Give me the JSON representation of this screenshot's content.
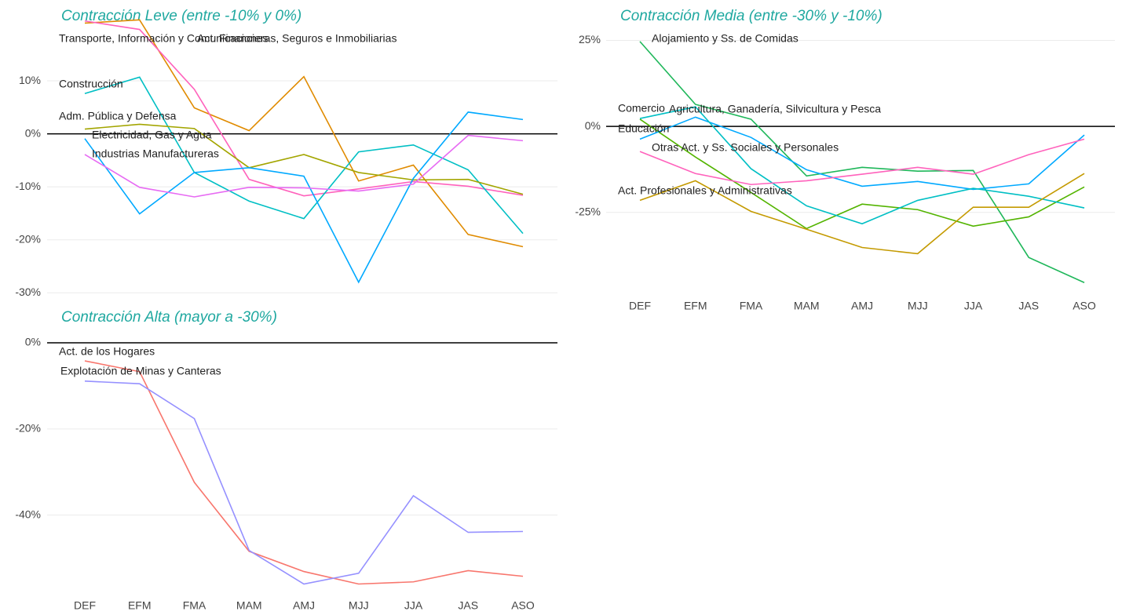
{
  "chart_data": [
    {
      "type": "line",
      "title": "Contracción Leve (entre -10% y 0%)",
      "categories": [
        "DEF",
        "EFM",
        "FMA",
        "MAM",
        "AMJ",
        "MJJ",
        "JJA",
        "JAS",
        "ASO"
      ],
      "show_xticks": false,
      "ylim": [
        -31,
        22
      ],
      "yticks": [
        {
          "value": -30,
          "label": "-30%"
        },
        {
          "value": -20,
          "label": "-20%"
        },
        {
          "value": -10,
          "label": "-10%"
        },
        {
          "value": 0,
          "label": "0%"
        },
        {
          "value": 10,
          "label": "10%"
        }
      ],
      "grid": true,
      "reference_line": 0,
      "series": [
        {
          "name": "Transporte, Información y Comunicaciones",
          "color": "#E08B00",
          "values": [
            20.9,
            21.5,
            4.9,
            0.6,
            10.8,
            -8.9,
            -5.9,
            -19,
            -21.3
          ]
        },
        {
          "name": "Act. Financieras, Seguros e Inmobiliarias",
          "color": "#FF62BC",
          "values": [
            21.3,
            19.7,
            8.4,
            -8.6,
            -11.7,
            -10.4,
            -9,
            -9.9,
            -11.6
          ]
        },
        {
          "name": "Construcción",
          "color": "#00BFC4",
          "values": [
            7.6,
            10.7,
            -7.3,
            -12.7,
            -16,
            -3.4,
            -2.1,
            -6.8,
            -18.8
          ]
        },
        {
          "name": "Adm. Pública y Defensa",
          "color": "#A3A500",
          "values": [
            0.9,
            1.8,
            1,
            -6.4,
            -3.9,
            -7.3,
            -8.7,
            -8.6,
            -11.4
          ]
        },
        {
          "name": "Electricidad, Gas y Agua",
          "color": "#00A9FF",
          "values": [
            -0.9,
            -15.1,
            -7.3,
            -6.4,
            -8,
            -28,
            -8.4,
            4.1,
            2.7
          ]
        },
        {
          "name": "Industrias Manufactureras",
          "color": "#E76BF3",
          "values": [
            -3.9,
            -10.1,
            -11.9,
            -10.1,
            -10.2,
            -10.8,
            -9.5,
            -0.3,
            -1.3
          ]
        }
      ]
    },
    {
      "type": "line",
      "title": "Contracción Media (entre -30% y -10%)",
      "categories": [
        "DEF",
        "EFM",
        "FMA",
        "MAM",
        "AMJ",
        "MJJ",
        "JJA",
        "JAS",
        "ASO"
      ],
      "show_xticks": true,
      "ylim": [
        -49,
        29
      ],
      "yticks": [
        {
          "value": -25,
          "label": "-25%"
        },
        {
          "value": 0,
          "label": "0%"
        },
        {
          "value": 25,
          "label": "25%"
        }
      ],
      "grid": true,
      "reference_line": 0,
      "series": [
        {
          "name": "Alojamiento y Ss. de Comidas",
          "color": "#1FB75A",
          "values": [
            24.7,
            6.4,
            2.1,
            -14.4,
            -11.9,
            -13,
            -12.8,
            -38.1,
            -45.4
          ]
        },
        {
          "name": "Agricultura, Ganadería, Silvicultura y Pesca",
          "color": "#53B400",
          "values": [
            2.1,
            -8.9,
            -19.2,
            -29.7,
            -22.6,
            -24.2,
            -29,
            -26.3,
            -17.6
          ]
        },
        {
          "name": "Comercio",
          "color": "#00A9FF",
          "values": [
            -3.7,
            2.7,
            -3.2,
            -12.6,
            -17.4,
            -16,
            -18.3,
            -16.7,
            -2.5
          ]
        },
        {
          "name": "Educación",
          "color": "#00BFC4",
          "values": [
            2.3,
            5.7,
            -12.3,
            -23.1,
            -28.3,
            -21.5,
            -18,
            -20.3,
            -23.7
          ]
        },
        {
          "name": "Otras Act. y Ss. Sociales y Personales",
          "color": "#FF62BC",
          "values": [
            -7.3,
            -13.7,
            -16.9,
            -15.8,
            -13.9,
            -11.9,
            -13.9,
            -8.2,
            -3.7
          ]
        },
        {
          "name": "Act. Profesionales y Administrativas",
          "color": "#C49A00",
          "values": [
            -21.5,
            -15.8,
            -24.7,
            -29.9,
            -35.2,
            -37,
            -23.5,
            -23.5,
            -13.7
          ]
        }
      ]
    },
    {
      "type": "line",
      "title": "Contracción Alta (mayor a -30%)",
      "categories": [
        "DEF",
        "EFM",
        "FMA",
        "MAM",
        "AMJ",
        "MJJ",
        "JJA",
        "JAS",
        "ASO"
      ],
      "show_xticks": true,
      "ylim": [
        -57,
        2
      ],
      "yticks": [
        {
          "value": -40,
          "label": "-40%"
        },
        {
          "value": -20,
          "label": "-20%"
        },
        {
          "value": 0,
          "label": "0%"
        }
      ],
      "grid": true,
      "reference_line": 0,
      "series": [
        {
          "name": "Act. de los Hogares",
          "color": "#F8766D",
          "values": [
            -4.2,
            -6.7,
            -32.4,
            -48.4,
            -53.1,
            -56,
            -55.5,
            -52.9,
            -54.2
          ]
        },
        {
          "name": "Explotación de Minas y Canteras",
          "color": "#9590FF",
          "values": [
            -8.9,
            -9.5,
            -17.6,
            -48.2,
            -56,
            -53.5,
            -35.5,
            -44,
            -43.8
          ]
        }
      ]
    }
  ]
}
